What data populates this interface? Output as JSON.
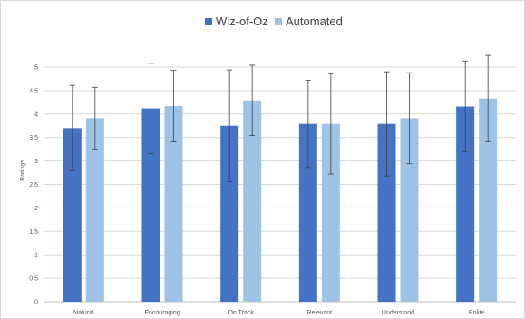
{
  "chart_data": {
    "type": "bar",
    "title": "",
    "xlabel": "",
    "ylabel": "Ratings",
    "ylim": [
      0,
      5
    ],
    "yticks": [
      "0",
      "0.5",
      "1",
      "1.5",
      "2",
      "2.5",
      "3",
      "3.5",
      "4",
      "4.5",
      "5"
    ],
    "ytick_values": [
      0,
      0.5,
      1,
      1.5,
      2,
      2.5,
      3,
      3.5,
      4,
      4.5,
      5
    ],
    "categories": [
      "Natural",
      "Encouraging",
      "On Track",
      "Relevant",
      "Understood",
      "Polite"
    ],
    "series": [
      {
        "name": "Wiz-of-Oz",
        "color": "#4472c4",
        "values": [
          3.7,
          4.12,
          3.75,
          3.79,
          3.79,
          4.16
        ],
        "error": [
          0.91,
          0.96,
          1.19,
          0.93,
          1.11,
          0.97
        ]
      },
      {
        "name": "Automated",
        "color": "#9dc3e6",
        "values": [
          3.91,
          4.17,
          4.29,
          3.79,
          3.91,
          4.33
        ],
        "error": [
          0.66,
          0.76,
          0.75,
          1.07,
          0.97,
          0.92
        ]
      }
    ],
    "grid": true,
    "legend_position": "top-center",
    "error_bars": true
  }
}
